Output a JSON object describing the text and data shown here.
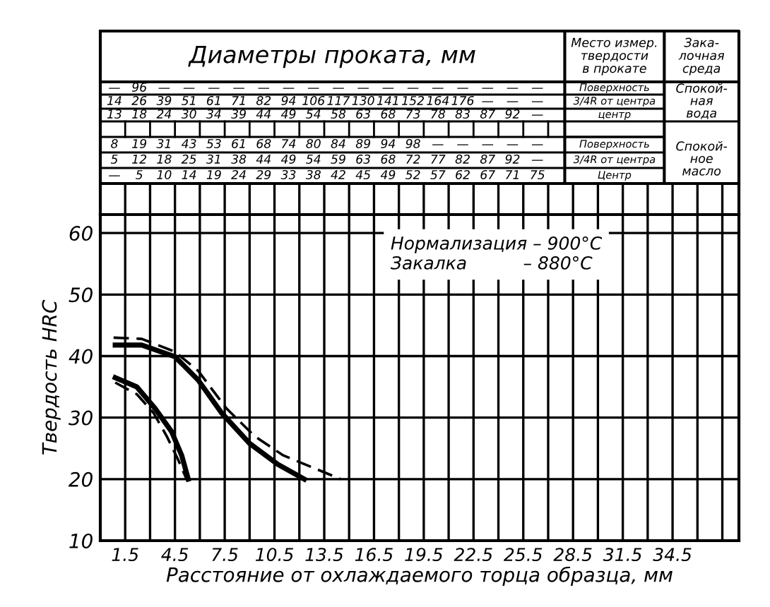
{
  "chart_data": {
    "type": "line",
    "xlabel": "Расстояние от охлаждаемого торца образца, мм",
    "ylabel": "Твердость HRC",
    "xlim": [
      0,
      38.5
    ],
    "ylim": [
      10,
      63
    ],
    "xticks": [
      1.5,
      {
        "value": 3,
        "label": null
      },
      4.5,
      {
        "value": 6,
        "label": null
      },
      7.5,
      {
        "value": 9,
        "label": null
      },
      10.5,
      {
        "value": 12,
        "label": null
      },
      13.5,
      {
        "value": 15,
        "label": null
      },
      16.5,
      {
        "value": 18,
        "label": null
      },
      19.5,
      {
        "value": 21,
        "label": null
      },
      22.5,
      {
        "value": 24,
        "label": null
      },
      25.5,
      {
        "value": 27,
        "label": null
      },
      28.5,
      {
        "value": 30,
        "label": null
      },
      31.5,
      {
        "value": 33,
        "label": null
      },
      34.5,
      {
        "value": 36,
        "label": null
      },
      {
        "value": 37.5,
        "label": null
      }
    ],
    "yticks": [
      10,
      20,
      30,
      40,
      50,
      60
    ],
    "grid": true,
    "marker": "none",
    "series": [
      {
        "color": "#000000",
        "line_style": "dashed",
        "x": [
          0.8,
          2.5,
          4.5,
          5.9,
          7.6,
          9.3,
          11,
          12.7,
          14.5
        ],
        "values": [
          43,
          42.8,
          40.7,
          37.6,
          31.5,
          27,
          23.9,
          22,
          20
        ]
      },
      {
        "color": "#000000",
        "line_style": "solid",
        "x": [
          0.9,
          2.5,
          4.5,
          5.9,
          7.3,
          9,
          10.7,
          12.3
        ],
        "values": [
          41.8,
          41.8,
          39.9,
          36.1,
          30.8,
          25.8,
          22.4,
          20
        ]
      },
      {
        "color": "#000000",
        "line_style": "solid",
        "x": [
          0.9,
          2.2,
          3.3,
          4.3,
          4.9,
          5.3
        ],
        "values": [
          36.5,
          35,
          31.5,
          27.7,
          23.9,
          20
        ]
      },
      {
        "color": "#000000",
        "line_style": "dashed",
        "x": [
          0.9,
          2.2,
          3.2,
          4.0,
          4.7,
          5.2
        ],
        "values": [
          35.7,
          33.8,
          30.8,
          27,
          23.1,
          20
        ]
      }
    ],
    "annotations": [
      "Диаметры проката, мм",
      "Место измер.\nтвердости\nв прокате",
      "Зака-\nлочная\nсреда",
      "— 96 — — — — — — — — — — — — — — — —",
      "14 26 39 51 61 71 82 94 106 117 130 141 152 164 176 — — —",
      "13 18 24 30 34 39 44 49 54 58 63 68 73 78 83 87 92 —",
      "8 19 31 43 53 61 68 74 80 84 89 94 98 — — — — —",
      "5 12 18 25 31 38 44 49 54 59 63 68 72 77 82 87 92 —",
      "— 5 10 14 19 24 29 33 38 42 45 49 52 57 62 67 71 75",
      "Поверхность",
      "3/4R от центра",
      "центр",
      "Поверхность",
      "3/4R от центра",
      "Центр",
      "Спокой-\nная\nвода",
      "Спокой-\nное\nмасло",
      "Нормализация – 900°C",
      "Закалка          – 880°C"
    ]
  }
}
